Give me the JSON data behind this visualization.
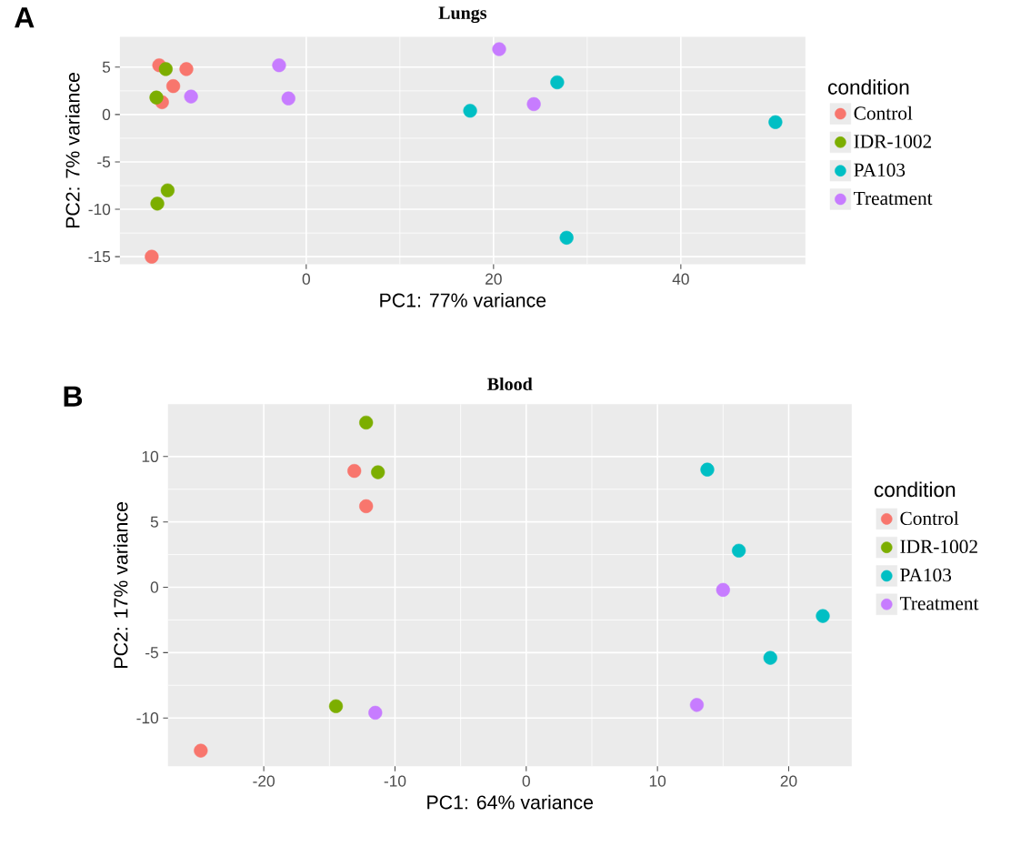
{
  "chart_data": [
    {
      "type": "scatter",
      "title": "Lungs",
      "xlabel": "PC1: 77% variance",
      "ylabel": "PC2: 7% variance",
      "legend_title": "condition",
      "annotations": [
        "A"
      ],
      "xlim": [
        -19.9,
        53.3
      ],
      "ylim": [
        -15.8,
        8.2
      ],
      "xticks": [
        0,
        20,
        40
      ],
      "yticks": [
        -15,
        -10,
        -5,
        0,
        5
      ],
      "grid": true,
      "legend": "right",
      "marker": "circle",
      "series": [
        {
          "name": "Control",
          "color": "#f8766d",
          "x": [
            -15.7,
            -12.8,
            -14.2,
            -15.4,
            -16.5
          ],
          "values": [
            5.2,
            4.8,
            3.0,
            1.3,
            -15.0
          ]
        },
        {
          "name": "IDR-1002",
          "color": "#7cae00",
          "x": [
            -15.0,
            -16.0,
            -14.8,
            -15.9
          ],
          "values": [
            4.8,
            1.8,
            -8.0,
            -9.4
          ]
        },
        {
          "name": "PA103",
          "color": "#00bfc4",
          "x": [
            17.5,
            26.8,
            50.1,
            27.8
          ],
          "values": [
            0.4,
            3.4,
            -0.8,
            -13.0
          ]
        },
        {
          "name": "Treatment",
          "color": "#c77cff",
          "x": [
            -12.3,
            -2.9,
            -1.9,
            20.6,
            24.3
          ],
          "values": [
            1.9,
            5.2,
            1.7,
            6.9,
            1.1
          ]
        }
      ]
    },
    {
      "type": "scatter",
      "title": "Blood",
      "xlabel": "PC1: 64% variance",
      "ylabel": "PC2: 17% variance",
      "legend_title": "condition",
      "annotations": [
        "B"
      ],
      "xlim": [
        -27.3,
        24.8
      ],
      "ylim": [
        -13.7,
        14.0
      ],
      "xticks": [
        -20,
        -10,
        0,
        10,
        20
      ],
      "yticks": [
        -10,
        -5,
        0,
        5,
        10
      ],
      "grid": true,
      "legend": "right",
      "marker": "circle",
      "series": [
        {
          "name": "Control",
          "color": "#f8766d",
          "x": [
            -13.1,
            -12.2,
            -24.8
          ],
          "values": [
            8.9,
            6.2,
            -12.5
          ]
        },
        {
          "name": "IDR-1002",
          "color": "#7cae00",
          "x": [
            -12.2,
            -11.3,
            -14.5
          ],
          "values": [
            12.6,
            8.8,
            -9.1
          ]
        },
        {
          "name": "PA103",
          "color": "#00bfc4",
          "x": [
            13.8,
            16.2,
            22.6,
            18.6
          ],
          "values": [
            9.0,
            2.8,
            -2.2,
            -5.4
          ]
        },
        {
          "name": "Treatment",
          "color": "#c77cff",
          "x": [
            -11.5,
            15.0,
            13.0
          ],
          "values": [
            -9.6,
            -0.2,
            -9.0
          ]
        }
      ]
    }
  ]
}
